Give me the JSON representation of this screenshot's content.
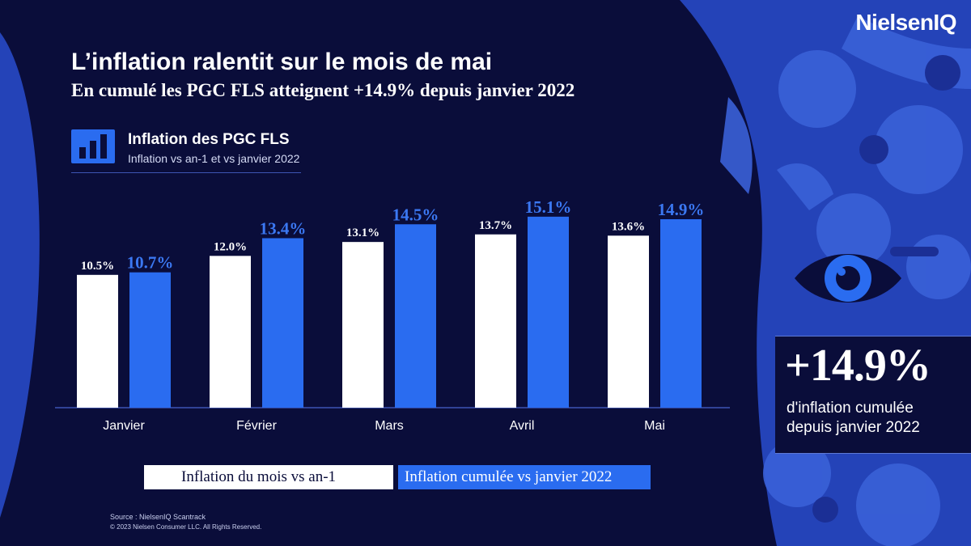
{
  "brand": {
    "logo": "NielsenIQ"
  },
  "header": {
    "title": "L’inflation ralentit sur le mois de mai",
    "subtitle": "En cumulé les PGC FLS atteignent +14.9% depuis janvier 2022"
  },
  "chart_header": {
    "title": "Inflation des PGC FLS",
    "subtitle": "Inflation vs an-1 et vs janvier 2022"
  },
  "chart_data": {
    "type": "bar",
    "categories": [
      "Janvier",
      "Février",
      "Mars",
      "Avril",
      "Mai"
    ],
    "series": [
      {
        "name": "Inflation du mois vs an-1",
        "values": [
          10.5,
          12.0,
          13.1,
          13.7,
          13.6
        ],
        "labels": [
          "10.5%",
          "12.0%",
          "13.1%",
          "13.7%",
          "13.6%"
        ],
        "color": "#ffffff"
      },
      {
        "name": "Inflation cumulée vs janvier 2022",
        "values": [
          10.7,
          13.4,
          14.5,
          15.1,
          14.9
        ],
        "labels": [
          "10.7%",
          "13.4%",
          "14.5%",
          "15.1%",
          "14.9%"
        ],
        "color": "#2a6cf0"
      }
    ],
    "ylim": [
      0,
      16
    ],
    "grid": false,
    "legend": "bottom"
  },
  "legend": {
    "white_label": "Inflation du mois vs an-1",
    "blue_label": "Inflation cumulée vs janvier 2022"
  },
  "callout": {
    "value": "+14.9%",
    "line1": "d'inflation cumulée",
    "line2": "depuis janvier 2022"
  },
  "footer": {
    "source": "Source : NielsenIQ Scantrack",
    "copyright": "© 2023 Nielsen Consumer LLC. All Rights Reserved."
  },
  "colors": {
    "background": "#0a0d3a",
    "accent": "#2a6cf0",
    "accent_text": "#3b78f2",
    "artwork": "#2c4fc6"
  },
  "icons": [
    "bar-chart-icon",
    "eye-icon"
  ]
}
